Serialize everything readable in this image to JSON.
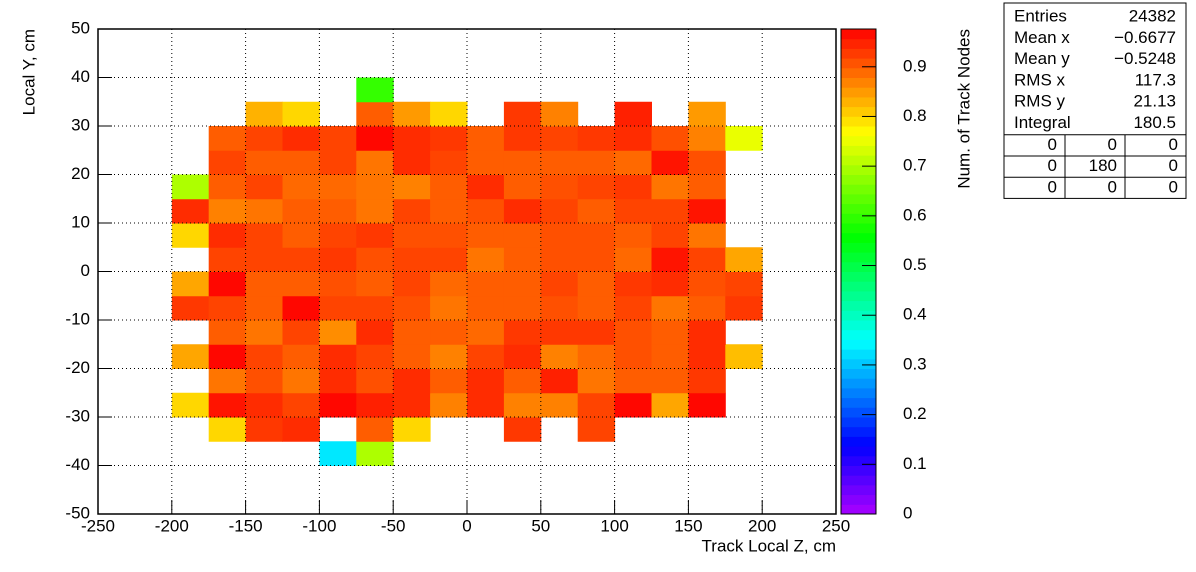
{
  "chart_data": {
    "type": "heatmap",
    "x_label": "Track Local Z, cm",
    "y_label": "Local Y, cm",
    "z_label": "Num. of Track Nodes",
    "xlim": [
      -250,
      250
    ],
    "ylim": [
      -50,
      50
    ],
    "zlim": [
      0,
      0.976
    ],
    "xticks": [
      -250,
      -200,
      -150,
      -100,
      -50,
      0,
      50,
      100,
      150,
      200,
      250
    ],
    "yticks": [
      -50,
      -40,
      -30,
      -20,
      -10,
      0,
      10,
      20,
      30,
      40,
      50
    ],
    "zticks": [
      0,
      0.1,
      0.2,
      0.3,
      0.4,
      0.5,
      0.6,
      0.7,
      0.8,
      0.9
    ],
    "grid": true,
    "xbins": [
      -200,
      -175,
      -150,
      -125,
      -100,
      -75,
      -50,
      -25,
      0,
      25,
      50,
      75,
      100,
      125,
      150,
      175,
      200
    ],
    "ybins": [
      -40,
      -35,
      -30,
      -25,
      -20,
      -15,
      -10,
      -5,
      0,
      5,
      10,
      15,
      20,
      25,
      30,
      35,
      40
    ],
    "z": [
      [
        null,
        null,
        null,
        null,
        0.33,
        0.7,
        null,
        null,
        null,
        null,
        null,
        null,
        null,
        null,
        null,
        null
      ],
      [
        null,
        0.8,
        0.93,
        0.94,
        null,
        0.9,
        0.8,
        null,
        null,
        0.93,
        null,
        0.92,
        null,
        null,
        null,
        null
      ],
      [
        0.8,
        0.96,
        0.94,
        0.92,
        0.97,
        0.95,
        0.94,
        0.87,
        0.94,
        0.87,
        0.87,
        0.92,
        0.97,
        0.84,
        0.97,
        null
      ],
      [
        null,
        0.88,
        0.91,
        0.88,
        0.94,
        0.91,
        0.94,
        0.9,
        0.94,
        0.9,
        0.95,
        0.88,
        0.9,
        0.9,
        0.93,
        null
      ],
      [
        0.84,
        0.97,
        0.92,
        0.9,
        0.94,
        0.92,
        0.9,
        0.87,
        0.92,
        0.94,
        0.87,
        0.89,
        0.91,
        0.9,
        0.94,
        0.82
      ],
      [
        null,
        0.9,
        0.88,
        0.92,
        0.86,
        0.94,
        0.9,
        0.9,
        0.89,
        0.93,
        0.93,
        0.93,
        0.91,
        0.9,
        0.94,
        null
      ],
      [
        0.93,
        0.92,
        0.9,
        0.97,
        0.92,
        0.92,
        0.91,
        0.88,
        0.9,
        0.9,
        0.91,
        0.9,
        0.92,
        0.88,
        0.9,
        0.93
      ],
      [
        0.84,
        0.97,
        0.9,
        0.9,
        0.91,
        0.9,
        0.92,
        0.89,
        0.9,
        0.9,
        0.92,
        0.9,
        0.93,
        0.94,
        0.91,
        0.92
      ],
      [
        null,
        0.92,
        0.92,
        0.92,
        0.93,
        0.91,
        0.92,
        0.92,
        0.88,
        0.9,
        0.91,
        0.91,
        0.89,
        0.96,
        0.92,
        0.84
      ],
      [
        0.8,
        0.94,
        0.92,
        0.9,
        0.92,
        0.93,
        0.91,
        0.91,
        0.9,
        0.9,
        0.91,
        0.91,
        0.9,
        0.92,
        0.88,
        null
      ],
      [
        0.94,
        0.87,
        0.88,
        0.9,
        0.9,
        0.88,
        0.92,
        0.9,
        0.91,
        0.94,
        0.92,
        0.9,
        0.92,
        0.92,
        0.96,
        null
      ],
      [
        0.7,
        0.9,
        0.92,
        0.89,
        0.89,
        0.88,
        0.87,
        0.9,
        0.94,
        0.9,
        0.91,
        0.92,
        0.93,
        0.88,
        0.9,
        null
      ],
      [
        null,
        0.92,
        0.9,
        0.9,
        0.92,
        0.88,
        0.94,
        0.92,
        0.9,
        0.9,
        0.9,
        0.9,
        0.89,
        0.96,
        0.91,
        null
      ],
      [
        null,
        0.9,
        0.92,
        0.94,
        0.92,
        0.97,
        0.94,
        0.93,
        0.9,
        0.93,
        0.92,
        0.93,
        0.94,
        0.91,
        0.87,
        0.75
      ],
      [
        null,
        null,
        0.83,
        0.8,
        null,
        0.9,
        0.85,
        0.8,
        null,
        0.93,
        0.87,
        null,
        0.95,
        null,
        0.85,
        null
      ],
      [
        null,
        null,
        null,
        null,
        null,
        0.6,
        null,
        null,
        null,
        null,
        null,
        null,
        null,
        null,
        null,
        null
      ]
    ]
  },
  "stats": {
    "rows": [
      [
        "Entries",
        "24382"
      ],
      [
        "Mean x",
        "−0.6677"
      ],
      [
        "Mean y",
        "−0.5248"
      ],
      [
        "RMS x",
        "117.3"
      ],
      [
        "RMS y",
        "21.13"
      ],
      [
        "Integral",
        "180.5"
      ]
    ],
    "grid": [
      [
        "0",
        "0",
        "0"
      ],
      [
        "0",
        "180",
        "0"
      ],
      [
        "0",
        "0",
        "0"
      ]
    ]
  }
}
